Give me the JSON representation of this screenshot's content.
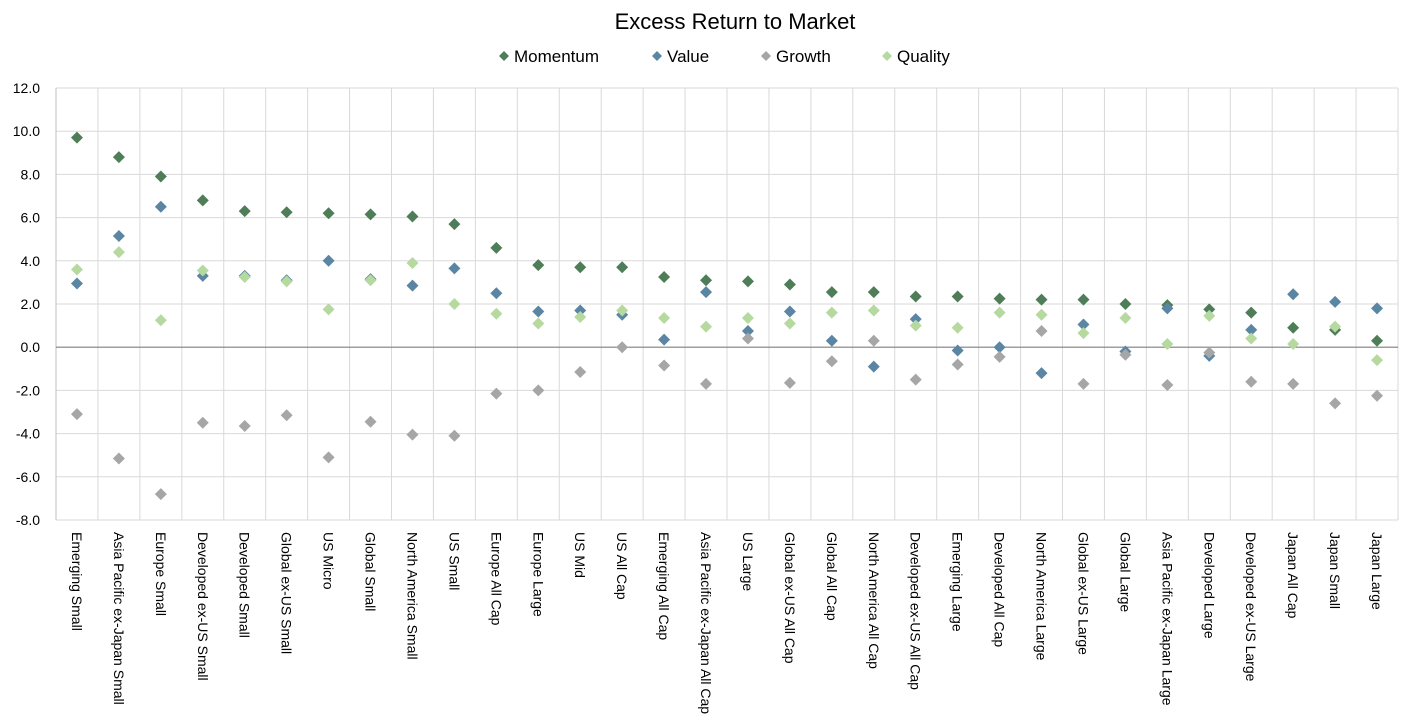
{
  "chart_data": {
    "type": "scatter",
    "title": "Excess Return to Market",
    "xlabel": "",
    "ylabel": "",
    "ylim": [
      -8.0,
      12.0
    ],
    "yticks": [
      "12.0",
      "10.0",
      "8.0",
      "6.0",
      "4.0",
      "2.0",
      "0.0",
      "-2.0",
      "-4.0",
      "-6.0",
      "-8.0"
    ],
    "grid": true,
    "legend_position": "top-center",
    "categories": [
      "Emerging Small",
      "Asia Pacific ex-Japan Small",
      "Europe Small",
      "Developed ex-US Small",
      "Developed Small",
      "Global ex-US Small",
      "US Micro",
      "Global Small",
      "North America Small",
      "US Small",
      "Europe All Cap",
      "Europe Large",
      "US Mid",
      "US All Cap",
      "Emerging All Cap",
      "Asia Pacific ex-Japan All Cap",
      "US Large",
      "Global ex-US All Cap",
      "Global All Cap",
      "North America All Cap",
      "Developed ex-US All Cap",
      "Emerging Large",
      "Developed All Cap",
      "North America Large",
      "Global ex-US Large",
      "Global Large",
      "Asia Pacific ex-Japan Large",
      "Developed Large",
      "Developed ex-US Large",
      "Japan All Cap",
      "Japan Small",
      "Japan Large"
    ],
    "series": [
      {
        "name": "Momentum",
        "color": "#4e7d58",
        "values": [
          9.7,
          8.8,
          7.9,
          6.8,
          6.3,
          6.25,
          6.2,
          6.15,
          6.05,
          5.7,
          4.6,
          3.8,
          3.7,
          3.7,
          3.25,
          3.1,
          3.05,
          2.9,
          2.55,
          2.55,
          2.35,
          2.35,
          2.25,
          2.2,
          2.2,
          2.0,
          1.95,
          1.75,
          1.6,
          0.9,
          0.8,
          0.3
        ]
      },
      {
        "name": "Value",
        "color": "#5a86a3",
        "values": [
          2.95,
          5.15,
          6.5,
          3.3,
          3.3,
          3.1,
          4.0,
          3.15,
          2.85,
          3.65,
          2.5,
          1.65,
          1.7,
          1.5,
          0.35,
          2.55,
          0.75,
          1.65,
          0.3,
          -0.9,
          1.3,
          -0.15,
          0.0,
          -1.2,
          1.05,
          -0.2,
          1.8,
          -0.4,
          0.8,
          2.45,
          2.1,
          1.8
        ]
      },
      {
        "name": "Growth",
        "color": "#a6a6a6",
        "values": [
          -3.1,
          -5.15,
          -6.8,
          -3.5,
          -3.65,
          -3.15,
          -5.1,
          -3.45,
          -4.05,
          -4.1,
          -2.15,
          -2.0,
          -1.15,
          0.0,
          -0.85,
          -1.7,
          0.4,
          -1.65,
          -0.65,
          0.3,
          -1.5,
          -0.8,
          -0.45,
          0.75,
          -1.7,
          -0.35,
          -1.75,
          -0.25,
          -1.6,
          -1.7,
          -2.6,
          -2.25
        ]
      },
      {
        "name": "Quality",
        "color": "#b6d9a0",
        "values": [
          3.6,
          4.4,
          1.25,
          3.55,
          3.25,
          3.05,
          1.75,
          3.1,
          3.9,
          2.0,
          1.55,
          1.1,
          1.4,
          1.7,
          1.35,
          0.95,
          1.35,
          1.1,
          1.6,
          1.7,
          1.0,
          0.9,
          1.6,
          1.5,
          0.65,
          1.35,
          0.15,
          1.45,
          0.4,
          0.15,
          0.95,
          -0.6
        ]
      }
    ]
  }
}
